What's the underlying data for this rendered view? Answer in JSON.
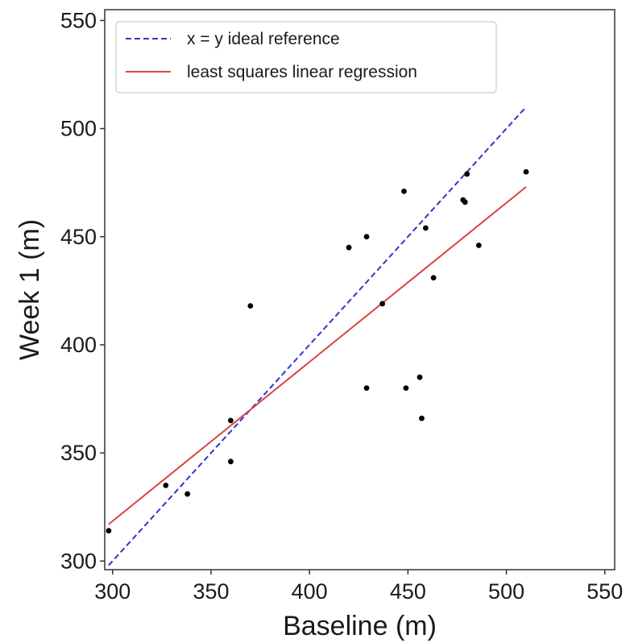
{
  "chart_data": {
    "type": "scatter",
    "xlabel": "Baseline (m)",
    "ylabel": "Week 1 (m)",
    "xlim": [
      296,
      555
    ],
    "ylim": [
      296,
      555
    ],
    "xticks": [
      300,
      350,
      400,
      450,
      500,
      550
    ],
    "yticks": [
      300,
      350,
      400,
      450,
      500,
      550
    ],
    "grid": false,
    "legend_position": "top-left",
    "points": [
      {
        "x": 298,
        "y": 314
      },
      {
        "x": 327,
        "y": 335
      },
      {
        "x": 338,
        "y": 331
      },
      {
        "x": 360,
        "y": 365
      },
      {
        "x": 360,
        "y": 346
      },
      {
        "x": 370,
        "y": 418
      },
      {
        "x": 420,
        "y": 445
      },
      {
        "x": 429,
        "y": 450
      },
      {
        "x": 429,
        "y": 380
      },
      {
        "x": 437,
        "y": 419
      },
      {
        "x": 448,
        "y": 471
      },
      {
        "x": 449,
        "y": 380
      },
      {
        "x": 456,
        "y": 385
      },
      {
        "x": 457,
        "y": 366
      },
      {
        "x": 459,
        "y": 454
      },
      {
        "x": 463,
        "y": 431
      },
      {
        "x": 478,
        "y": 467
      },
      {
        "x": 479,
        "y": 466
      },
      {
        "x": 480,
        "y": 479
      },
      {
        "x": 486,
        "y": 446
      },
      {
        "x": 510,
        "y": 480
      }
    ],
    "series": [
      {
        "name": "x = y ideal reference",
        "style": "dashed",
        "color": "#3333cc",
        "x": [
          298,
          510
        ],
        "y": [
          298,
          510
        ]
      },
      {
        "name": "least squares linear regression",
        "style": "solid",
        "color": "#d94444",
        "x": [
          298,
          510
        ],
        "y": [
          317,
          473
        ]
      }
    ],
    "point_color": "#000000"
  }
}
